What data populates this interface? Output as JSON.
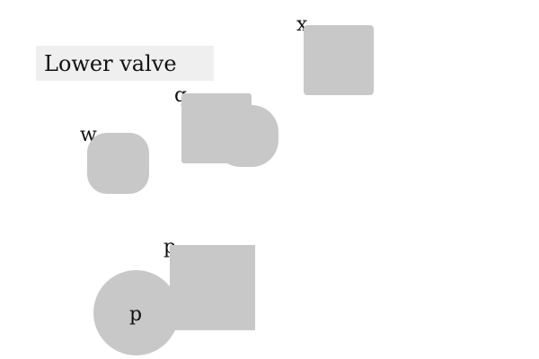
{
  "button": {
    "label": "Lower valve"
  },
  "shapes": [
    {
      "id": "x",
      "label": "x",
      "kind": "rounded-square"
    },
    {
      "id": "q",
      "label": "q",
      "kind": "compound-rounded"
    },
    {
      "id": "w",
      "label": "w",
      "kind": "squircle"
    },
    {
      "id": "p-square",
      "label": "p",
      "kind": "square"
    },
    {
      "id": "p-circle",
      "label": "p",
      "kind": "circle"
    }
  ],
  "colors": {
    "shape_fill": "#c8c8c8",
    "button_bg": "#efefef",
    "text": "#111111",
    "background": "#ffffff"
  }
}
